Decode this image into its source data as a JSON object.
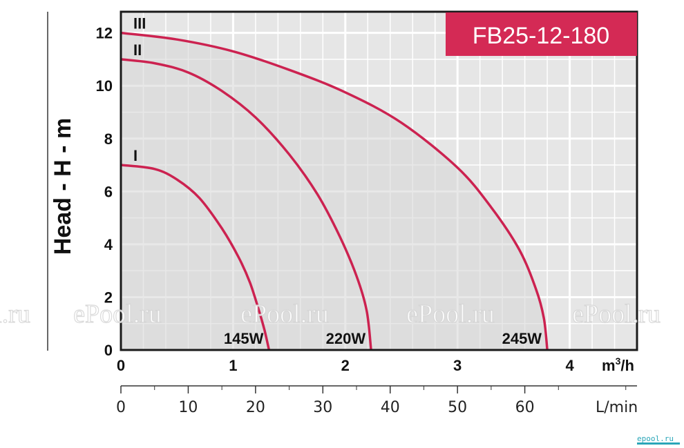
{
  "chart_data": {
    "type": "line",
    "model": "FB25-12-180",
    "ylabel": "Head - H - m",
    "xunit": "m³/h",
    "xunit_base": "m",
    "xunit_exp": "3",
    "xunit_tail": "/h",
    "x2unit": "L/min",
    "xlim": [
      0,
      4.6
    ],
    "ylim": [
      0,
      12.8
    ],
    "x2lim": [
      0,
      76.67
    ],
    "yticks": [
      "0",
      "2",
      "4",
      "6",
      "8",
      "10",
      "12"
    ],
    "xticks": [
      "0",
      "1",
      "2",
      "3",
      "4"
    ],
    "x2ticks": [
      "0",
      "10",
      "20",
      "30",
      "40",
      "50",
      "60"
    ],
    "grid": true,
    "colors": {
      "curve": "#cc2250",
      "plot_bg": "#e6e6e6",
      "grid": "#ffffff",
      "label_box": "#d42a55"
    },
    "series": [
      {
        "name": "I",
        "power": "145W",
        "h0": 7,
        "qmax": 1.32,
        "points": [
          [
            0,
            7.0
          ],
          [
            0.3,
            6.85
          ],
          [
            0.5,
            6.45
          ],
          [
            0.7,
            5.75
          ],
          [
            0.9,
            4.6
          ],
          [
            1.05,
            3.5
          ],
          [
            1.15,
            2.55
          ],
          [
            1.23,
            1.5
          ],
          [
            1.28,
            0.75
          ],
          [
            1.32,
            0
          ]
        ]
      },
      {
        "name": "II",
        "power": "220W",
        "h0": 11,
        "qmax": 2.23,
        "points": [
          [
            0,
            11.0
          ],
          [
            0.3,
            10.85
          ],
          [
            0.6,
            10.5
          ],
          [
            0.9,
            9.8
          ],
          [
            1.2,
            8.8
          ],
          [
            1.5,
            7.4
          ],
          [
            1.75,
            5.9
          ],
          [
            1.95,
            4.3
          ],
          [
            2.1,
            2.8
          ],
          [
            2.19,
            1.5
          ],
          [
            2.23,
            0
          ]
        ]
      },
      {
        "name": "III",
        "power": "245W",
        "h0": 12,
        "qmax": 3.8,
        "points": [
          [
            0,
            12.0
          ],
          [
            0.5,
            11.75
          ],
          [
            1.0,
            11.3
          ],
          [
            1.5,
            10.6
          ],
          [
            2.0,
            9.75
          ],
          [
            2.5,
            8.6
          ],
          [
            3.0,
            6.9
          ],
          [
            3.3,
            5.4
          ],
          [
            3.55,
            3.8
          ],
          [
            3.7,
            2.3
          ],
          [
            3.77,
            1.2
          ],
          [
            3.8,
            0
          ]
        ]
      }
    ],
    "watermarks": [
      "ePool.ru",
      "ePool.ru",
      "ePool.ru",
      "ePool.ru",
      "ePool.ru",
      "ePool.ru"
    ],
    "logo": "epool.ru"
  }
}
